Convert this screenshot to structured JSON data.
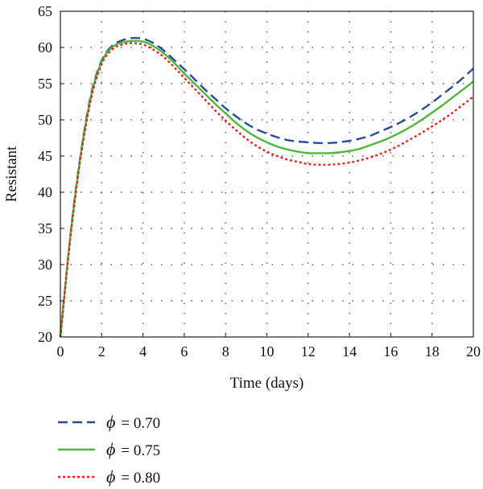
{
  "chart_data": {
    "type": "line",
    "xlabel": "Time (days)",
    "ylabel": "Resistant",
    "xlim": [
      0,
      20
    ],
    "ylim": [
      20,
      65
    ],
    "xticks": [
      0,
      2,
      4,
      6,
      8,
      10,
      12,
      14,
      16,
      18,
      20
    ],
    "yticks": [
      20,
      25,
      30,
      35,
      40,
      45,
      50,
      55,
      60,
      65
    ],
    "grid": "dotted",
    "legend_position": "below",
    "x": [
      0,
      0.5,
      1,
      1.5,
      2,
      2.5,
      3,
      3.5,
      4,
      4.5,
      5,
      5.5,
      6,
      6.5,
      7,
      7.5,
      8,
      8.5,
      9,
      9.5,
      10,
      10.5,
      11,
      11.5,
      12,
      12.5,
      13,
      13.5,
      14,
      14.5,
      15,
      15.5,
      16,
      16.5,
      17,
      17.5,
      18,
      18.5,
      19,
      19.5,
      20
    ],
    "series": [
      {
        "name": "ϕ = 0.70",
        "symbol": "ϕ",
        "value_text": "= 0.70",
        "color": "#2a4a9c",
        "dash": "12,6",
        "values": [
          20.0,
          34.5,
          45.6,
          53.7,
          58.2,
          60.2,
          61.0,
          61.3,
          61.2,
          60.6,
          59.6,
          58.3,
          57.0,
          55.6,
          54.2,
          52.9,
          51.6,
          50.5,
          49.5,
          48.7,
          48.1,
          47.6,
          47.2,
          47.0,
          46.9,
          46.8,
          46.8,
          46.9,
          47.1,
          47.4,
          47.8,
          48.4,
          49.0,
          49.7,
          50.5,
          51.4,
          52.4,
          53.5,
          54.6,
          55.8,
          57.1
        ]
      },
      {
        "name": "ϕ = 0.75",
        "symbol": "ϕ",
        "value_text": "= 0.75",
        "color": "#4db83a",
        "dash": "",
        "values": [
          20.0,
          34.3,
          45.4,
          53.4,
          58.0,
          60.0,
          60.7,
          60.9,
          60.8,
          60.2,
          59.2,
          57.9,
          56.4,
          55.0,
          53.6,
          52.2,
          50.9,
          49.6,
          48.5,
          47.6,
          46.9,
          46.3,
          45.9,
          45.6,
          45.4,
          45.4,
          45.4,
          45.5,
          45.7,
          46.0,
          46.5,
          47.0,
          47.6,
          48.3,
          49.1,
          50.0,
          51.0,
          52.0,
          53.1,
          54.2,
          55.3
        ]
      },
      {
        "name": "ϕ = 0.80",
        "symbol": "ϕ",
        "value_text": "= 0.80",
        "color": "#e8231f",
        "dash": "3,3",
        "values": [
          20.0,
          34.1,
          45.1,
          53.1,
          57.7,
          59.7,
          60.4,
          60.6,
          60.4,
          59.7,
          58.7,
          57.3,
          55.8,
          54.3,
          52.8,
          51.3,
          49.9,
          48.6,
          47.4,
          46.4,
          45.6,
          45.0,
          44.5,
          44.2,
          43.9,
          43.8,
          43.8,
          43.9,
          44.1,
          44.4,
          44.8,
          45.3,
          45.9,
          46.6,
          47.4,
          48.2,
          49.1,
          50.0,
          51.0,
          52.1,
          53.2
        ]
      }
    ]
  }
}
